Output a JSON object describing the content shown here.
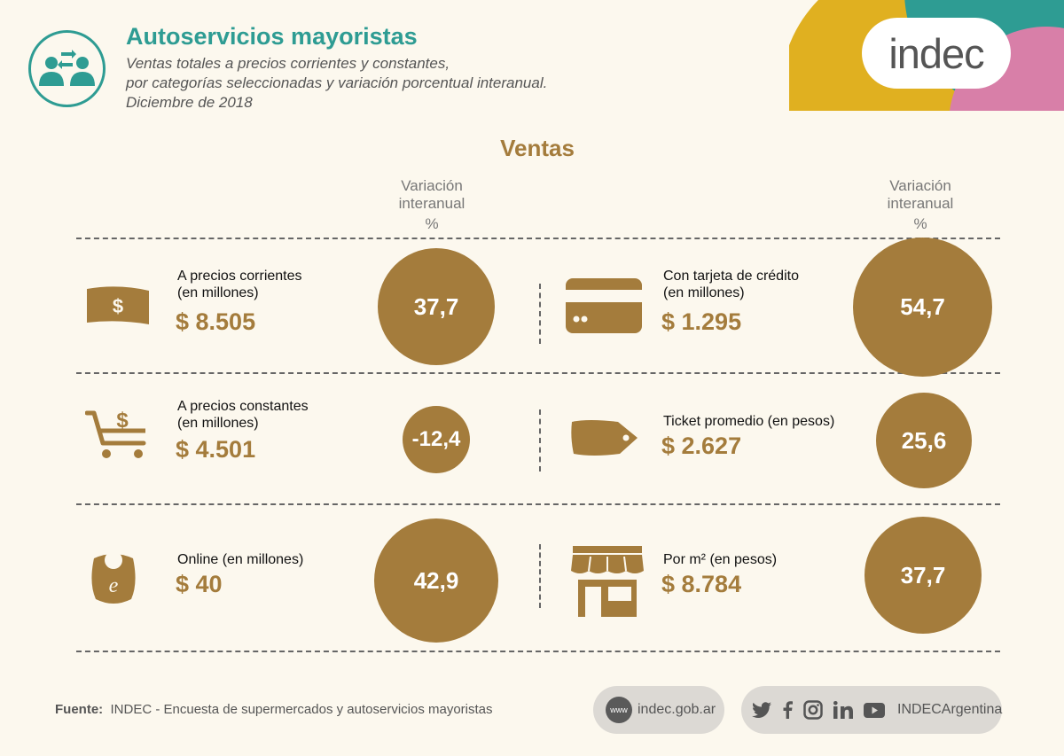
{
  "header": {
    "title": "Autoservicios mayoristas",
    "subtitle_lines": [
      "Ventas totales a precios corrientes y constantes,",
      "por categorías seleccionadas y variación porcentual interanual.",
      "Diciembre de 2018"
    ],
    "brand": "indec",
    "colors": {
      "teal": "#2e9c93",
      "gold": "#e0b020",
      "pink": "#d87fa8",
      "accent": "#a47c3c"
    }
  },
  "section_title": "Ventas",
  "variation_header": {
    "line1": "Variación",
    "line2": "interanual",
    "line3": "%"
  },
  "items": [
    {
      "icon": "banknote-icon",
      "label_lines": [
        "A precios corrientes",
        "(en millones)"
      ],
      "value": "$ 8.505",
      "variation": "37,7"
    },
    {
      "icon": "credit-card-icon",
      "label_lines": [
        "Con tarjeta de crédito",
        "(en millones)"
      ],
      "value": "$ 1.295",
      "variation": "54,7"
    },
    {
      "icon": "shopping-cart-icon",
      "label_lines": [
        "A precios constantes",
        "(en millones)"
      ],
      "value": "$ 4.501",
      "variation": "-12,4"
    },
    {
      "icon": "price-tag-icon",
      "label_lines": [
        "Ticket promedio (en pesos)"
      ],
      "value": "$ 2.627",
      "variation": "25,6"
    },
    {
      "icon": "online-bag-icon",
      "label_lines": [
        "Online (en millones)"
      ],
      "value": "$ 40",
      "variation": "42,9"
    },
    {
      "icon": "storefront-icon",
      "label_lines": [
        "Por m² (en pesos)"
      ],
      "value": "$ 8.784",
      "variation": "37,7"
    }
  ],
  "footer": {
    "source_label": "Fuente:",
    "source_text": "INDEC - Encuesta de supermercados y autoservicios mayoristas",
    "www_badge": "www",
    "website": "indec.gob.ar",
    "social_icons": [
      "twitter-icon",
      "facebook-icon",
      "instagram-icon",
      "linkedin-icon",
      "youtube-icon"
    ],
    "social_handle": "INDECArgentina"
  }
}
